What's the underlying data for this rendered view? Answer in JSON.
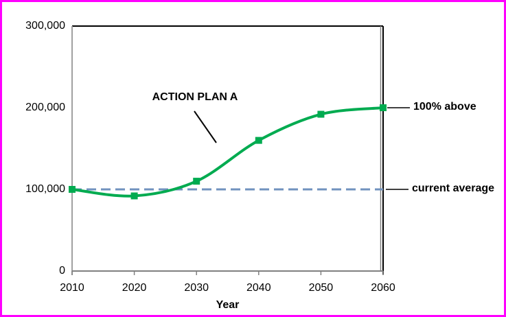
{
  "chart_data": {
    "type": "line",
    "x": [
      2010,
      2020,
      2030,
      2040,
      2050,
      2060
    ],
    "series": [
      {
        "name": "ACTION PLAN A",
        "values": [
          100000,
          92000,
          110000,
          160000,
          192000,
          200000
        ],
        "color": "#00AB50",
        "marker": "square",
        "smooth": true
      }
    ],
    "reference_line": {
      "value": 100000,
      "label": "current average",
      "style": "dashed",
      "color": "#7092BE"
    },
    "xlabel": "Year",
    "ylabel": "",
    "xlim": [
      2010,
      2060
    ],
    "ylim": [
      0,
      300000
    ],
    "y_ticks": [
      0,
      100000,
      200000,
      300000
    ],
    "y_tick_labels": [
      "0",
      "100,000",
      "200,000",
      "300,000"
    ],
    "x_tick_labels": [
      "2010",
      "2020",
      "2030",
      "2040",
      "2050",
      "2060"
    ],
    "grid": false,
    "legend": "none",
    "annotations": [
      {
        "text": "ACTION PLAN A",
        "points_to": "green curve"
      },
      {
        "text": "100% above",
        "points_to": "last data point (2060, 200000)"
      },
      {
        "text": "current average",
        "points_to": "dashed reference line at 100000"
      }
    ]
  },
  "labels": {
    "series_annotation": "ACTION PLAN A",
    "above_label": "100% above",
    "average_label": "current average"
  },
  "colors": {
    "page_border": "#FF00FF",
    "series_green": "#00AB50",
    "reference_blue": "#7092BE",
    "axis_gray": "#A0A0A0",
    "axis_dark_gray": "#808080",
    "text": "#000000"
  }
}
